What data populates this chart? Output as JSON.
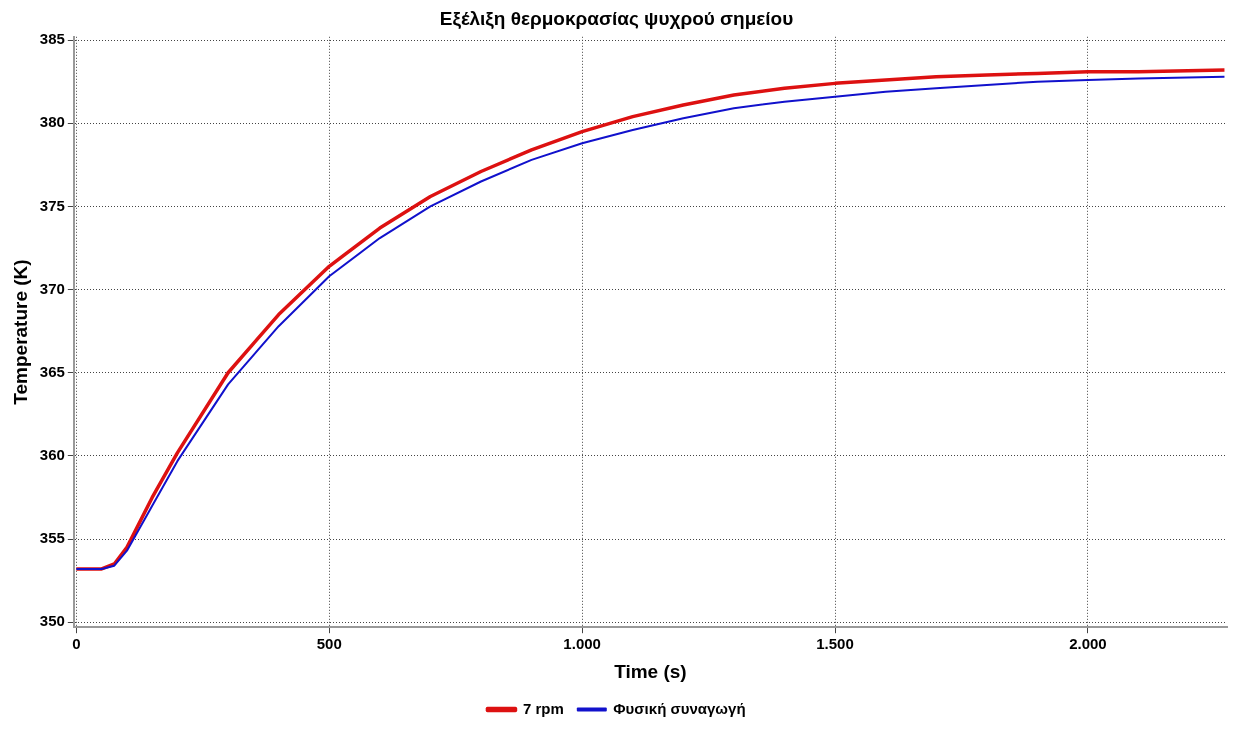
{
  "chart_data": {
    "type": "line",
    "title": "Εξέλιξη θερμοκρασίας ψυχρού σημείου",
    "xlabel": "Time (s)",
    "ylabel": "Temperature (K)",
    "xlim": [
      -5,
      2275
    ],
    "xticks": [
      0,
      500,
      {
        "value": 1000,
        "label": "1.000"
      },
      {
        "value": 1500,
        "label": "1.500"
      },
      {
        "value": 2000,
        "label": "2.000"
      }
    ],
    "ylim": [
      349.7,
      385.2
    ],
    "yticks": [
      350,
      355,
      360,
      365,
      370,
      375,
      380,
      385
    ],
    "grid": true,
    "legend": "bottom",
    "marker": "none",
    "line_style": "solid",
    "series": [
      {
        "name": "7 rpm",
        "color": "#dd1111",
        "x": [
          0,
          50,
          75,
          100,
          150,
          200,
          300,
          400,
          500,
          600,
          700,
          800,
          900,
          1000,
          1100,
          1200,
          1300,
          1400,
          1500,
          1600,
          1700,
          1800,
          1900,
          2000,
          2100,
          2270
        ],
        "values": [
          353.2,
          353.2,
          353.5,
          354.5,
          357.5,
          360.2,
          365.0,
          368.5,
          371.4,
          373.7,
          375.6,
          377.1,
          378.4,
          379.5,
          380.4,
          381.1,
          381.7,
          382.1,
          382.4,
          382.6,
          382.8,
          382.9,
          383.0,
          383.1,
          383.1,
          383.2
        ]
      },
      {
        "name": "Φυσική συναγωγή",
        "color": "#1111cc",
        "x": [
          0,
          50,
          75,
          100,
          150,
          200,
          300,
          400,
          500,
          600,
          700,
          800,
          900,
          1000,
          1100,
          1200,
          1300,
          1400,
          1500,
          1600,
          1700,
          1800,
          1900,
          2000,
          2100,
          2270
        ],
        "values": [
          353.2,
          353.2,
          353.4,
          354.3,
          357.0,
          359.7,
          364.3,
          367.8,
          370.8,
          373.1,
          375.0,
          376.5,
          377.8,
          378.8,
          379.6,
          380.3,
          380.9,
          381.3,
          381.6,
          381.9,
          382.1,
          382.3,
          382.5,
          382.6,
          382.7,
          382.8
        ]
      }
    ]
  }
}
